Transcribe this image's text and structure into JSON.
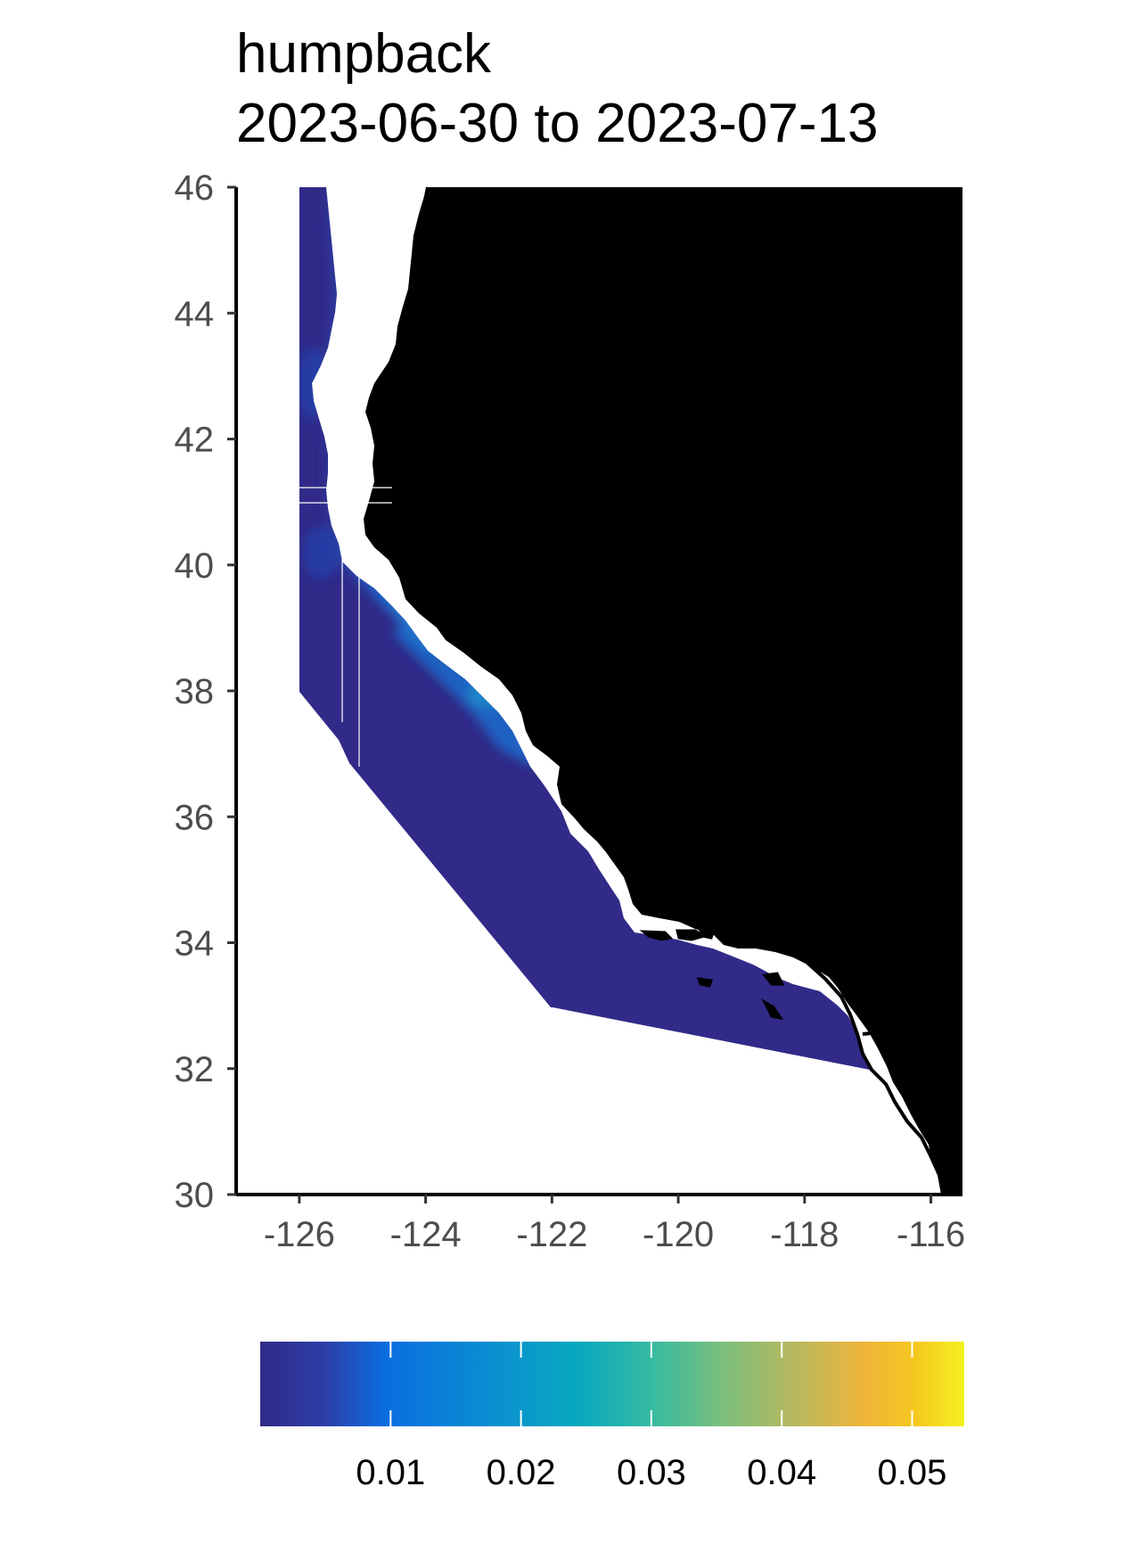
{
  "title": {
    "species": "humpback",
    "date_range": "2023-06-30 to 2023-07-13"
  },
  "axes": {
    "x_ticks": [
      "-126",
      "-124",
      "-122",
      "-120",
      "-118",
      "-116"
    ],
    "y_ticks": [
      "46",
      "44",
      "42",
      "40",
      "38",
      "36",
      "34",
      "32",
      "30"
    ],
    "x_range": [
      -127,
      -115.5
    ],
    "y_range": [
      30,
      46
    ]
  },
  "legend": {
    "ticks": [
      "0.01",
      "0.02",
      "0.03",
      "0.04",
      "0.05"
    ],
    "range": [
      0,
      0.054
    ],
    "colors": [
      "#2f2a86",
      "#2d3ea8",
      "#0a6ee0",
      "#0a8fd0",
      "#08a8bf",
      "#38bba0",
      "#7dbf7a",
      "#b8b85e",
      "#f0b53a",
      "#f5c820",
      "#f5f020"
    ]
  },
  "colors": {
    "land": "#bebebe",
    "ocean_low": "#312a88",
    "coast_line": "#000000"
  }
}
